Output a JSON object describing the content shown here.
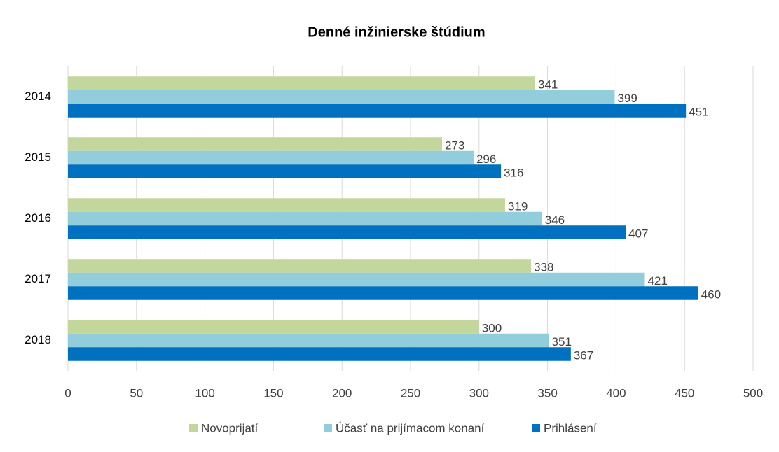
{
  "chart_data": {
    "type": "bar",
    "orientation": "horizontal",
    "title": "Denné inžinierske štúdium",
    "categories": [
      "2014",
      "2015",
      "2016",
      "2017",
      "2018"
    ],
    "series": [
      {
        "name": "Novoprijatí",
        "color": "#c3d69b",
        "values": [
          341,
          273,
          319,
          338,
          300
        ]
      },
      {
        "name": "Účasť na prijímacom konaní",
        "color": "#92cddc",
        "values": [
          399,
          296,
          346,
          421,
          351
        ]
      },
      {
        "name": "Prihlásení",
        "color": "#0070c0",
        "values": [
          451,
          316,
          407,
          460,
          367
        ]
      }
    ],
    "xlim": [
      0,
      500
    ],
    "xticks": [
      0,
      50,
      100,
      150,
      200,
      250,
      300,
      350,
      400,
      450,
      500
    ],
    "grid": true,
    "legend": "bottom",
    "data_labels": true
  }
}
